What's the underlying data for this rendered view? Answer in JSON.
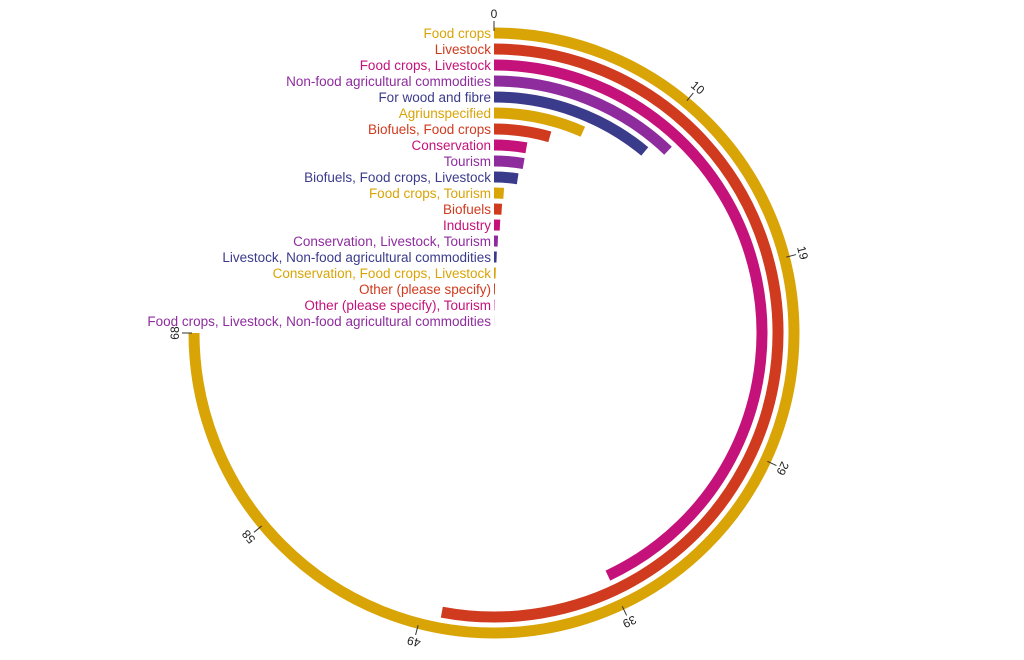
{
  "chart_data": {
    "type": "radial-bar",
    "max_value": 68,
    "ticks": [
      0,
      10,
      19,
      29,
      39,
      49,
      58,
      68
    ],
    "palette": [
      "#D9A406",
      "#D03A1F",
      "#C4127A",
      "#8E2C9E",
      "#3B3B8C"
    ],
    "categories": [
      "Food crops",
      "Livestock",
      "Food crops, Livestock",
      "Non-food agricultural commodities",
      "For wood and fibre",
      "Agriunspecified",
      "Biofuels, Food crops",
      "Conservation",
      "Tourism",
      "Biofuels, Food crops, Livestock",
      "Food crops, Tourism",
      "Biofuels",
      "Industry",
      "Conservation, Livestock, Tourism",
      "Livestock, Non-food agricultural commodities",
      "Conservation, Food crops, Livestock",
      "Other (please specify)",
      "Other (please specify), Tourism",
      "Food crops, Livestock, Non-food agricultural commodities"
    ],
    "values": [
      68,
      48,
      39,
      11,
      10,
      6,
      4,
      2.5,
      2.5,
      2.2,
      1,
      0.9,
      0.8,
      0.6,
      0.5,
      0.4,
      0.3,
      0.2,
      0.1
    ],
    "grid": false,
    "legend": "none"
  }
}
